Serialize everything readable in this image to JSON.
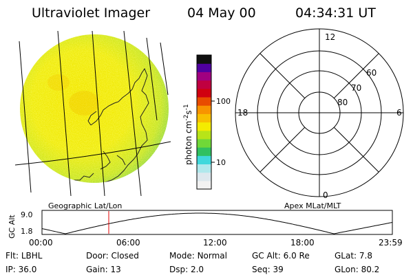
{
  "header": {
    "instrument": "Ultraviolet Imager",
    "date": "04 May 00",
    "time": "04:34:31 UT"
  },
  "colorbar": {
    "unit": "photon cm",
    "unit_exp1": "-2",
    "unit_s": "s",
    "unit_exp2": "-1",
    "tick_labels": [
      "100",
      "10"
    ],
    "colors": [
      "#f2f2f2",
      "#dde8ee",
      "#b0e8ec",
      "#40d8dc",
      "#30c060",
      "#70d838",
      "#b8e418",
      "#f4ec00",
      "#f8c000",
      "#f89400",
      "#e84c00",
      "#d00010",
      "#c00040",
      "#a00080",
      "#5000a0",
      "#101010"
    ]
  },
  "labels": {
    "left_map": "Geographic Lat/Lon",
    "right_map": "Apex MLat/MLT",
    "gc_alt_axis": "GC Alt"
  },
  "polar": {
    "mlt_labels": [
      "12",
      "18",
      "6",
      "0"
    ],
    "lat_labels": [
      "60",
      "70",
      "80"
    ]
  },
  "timeline": {
    "y_ticks": [
      "9.0",
      "1.8"
    ],
    "x_ticks": [
      "00:00",
      "06:00",
      "12:00",
      "18:00",
      "23:59"
    ],
    "current_time_hours": 4.575
  },
  "status": {
    "row1": [
      {
        "label": "Flt:",
        "value": "LBHL"
      },
      {
        "label": "Door:",
        "value": "Closed"
      },
      {
        "label": "Mode:",
        "value": "Normal"
      },
      {
        "label": "GC Alt:",
        "value": "6.0 Re"
      },
      {
        "label": "GLat:",
        "value": "7.8"
      }
    ],
    "row2": [
      {
        "label": "IP:",
        "value": "36.0"
      },
      {
        "label": "Gain:",
        "value": "13"
      },
      {
        "label": "Dsp:",
        "value": "2.0"
      },
      {
        "label": "Seq:",
        "value": "39"
      },
      {
        "label": "GLon:",
        "value": "80.2"
      }
    ]
  }
}
